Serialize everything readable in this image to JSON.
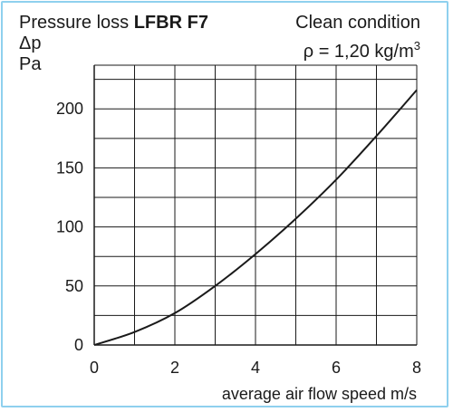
{
  "header": {
    "title_prefix": "Pressure loss ",
    "title_model": "LFBR F7",
    "condition": "Clean condition",
    "density_prefix": "ρ = 1,20 kg/m",
    "density_exp": "3"
  },
  "chart_data": {
    "type": "line",
    "title": "Pressure loss LFBR F7",
    "ylabel_symbol": "Δp",
    "ylabel_unit": "Pa",
    "xlabel": "average air flow speed m/s",
    "xlim": [
      0,
      8
    ],
    "ylim": [
      0,
      237
    ],
    "x_ticks": [
      0,
      2,
      4,
      6,
      8
    ],
    "x_tick_labels": [
      "0",
      "2",
      "4",
      "6",
      "8"
    ],
    "y_ticks": [
      0,
      50,
      100,
      150,
      200
    ],
    "y_tick_labels": [
      "0",
      "50",
      "100",
      "150",
      "200"
    ],
    "x_gridlines": [
      0,
      1,
      2,
      3,
      4,
      5,
      6,
      7,
      8
    ],
    "y_gridlines": [
      0,
      25,
      50,
      75,
      100,
      125,
      150,
      175,
      200,
      225
    ],
    "grid": true,
    "line_color": "#1a1a1a",
    "grid_color": "#1a1a1a",
    "series": [
      {
        "x": [
          0,
          1,
          2,
          3,
          4,
          5,
          6,
          7,
          8
        ],
        "y": [
          0,
          11,
          27,
          50,
          77,
          107,
          140,
          177,
          216
        ]
      }
    ]
  }
}
